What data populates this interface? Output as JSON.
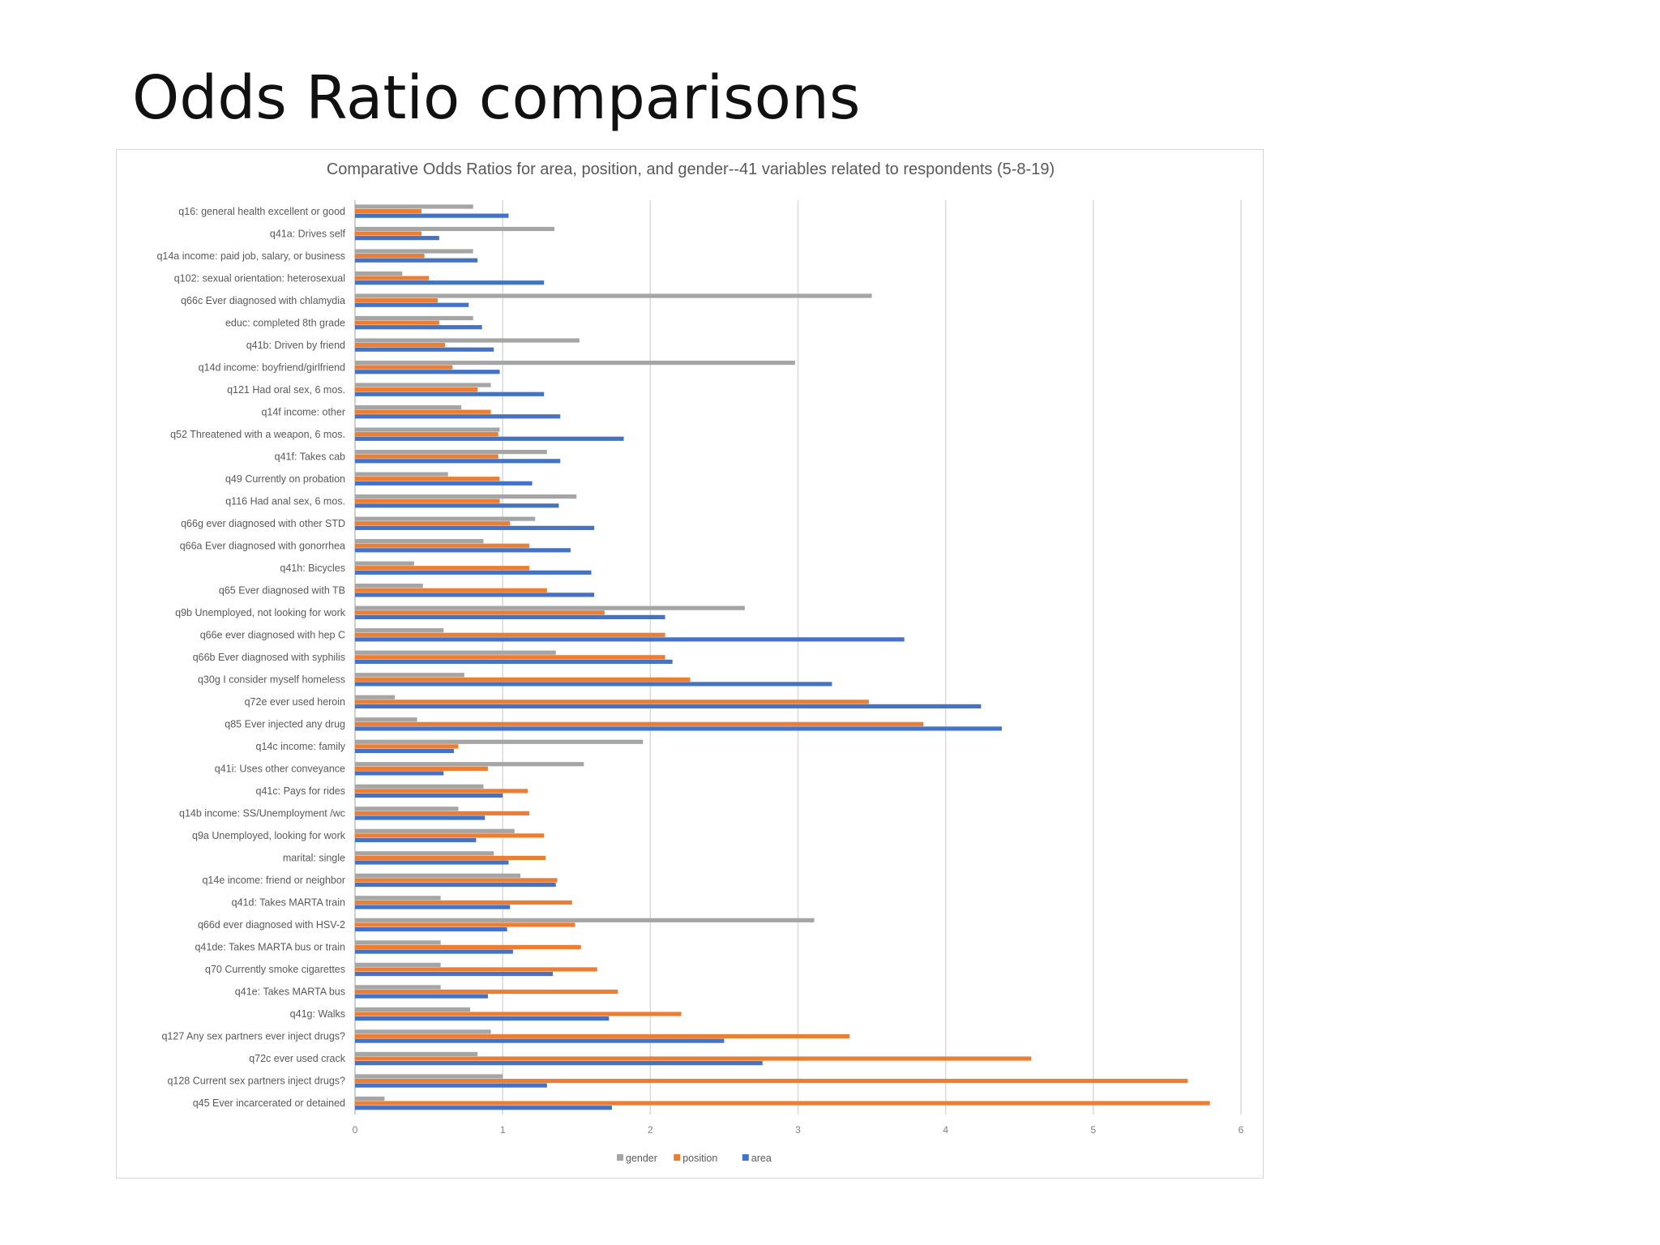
{
  "slide": {
    "title": "Odds Ratio comparisons"
  },
  "chart_data": {
    "type": "bar",
    "orientation": "horizontal",
    "title": "Comparative Odds Ratios for area, position, and gender--41 variables related to respondents (5-8-19)",
    "xlabel": "",
    "ylabel": "",
    "xlim": [
      0,
      6
    ],
    "x_ticks": [
      "0",
      "1",
      "2",
      "3",
      "4",
      "5",
      "6"
    ],
    "grid": "vertical",
    "legend": "bottom",
    "categories": [
      "q16: general health excellent or good",
      "q41a: Drives self",
      "q14a income: paid job, salary, or business",
      "q102: sexual orientation: heterosexual",
      "q66c Ever diagnosed with chlamydia",
      "educ: completed 8th grade",
      "q41b: Driven by friend",
      "q14d income: boyfriend/girlfriend",
      "q121 Had oral sex, 6 mos.",
      "q14f income: other",
      "q52 Threatened with a weapon, 6 mos.",
      "q41f: Takes cab",
      "q49 Currently on probation",
      "q116 Had anal sex, 6 mos.",
      "q66g ever diagnosed with other STD",
      "q66a Ever diagnosed with gonorrhea",
      "q41h: Bicycles",
      "q65 Ever diagnosed with TB",
      "q9b Unemployed, not looking for work",
      "q66e ever diagnosed with hep C",
      "q66b Ever diagnosed with syphilis",
      "q30g I consider myself homeless",
      "q72e ever used heroin",
      "q85 Ever injected any drug",
      "q14c income: family",
      "q41i: Uses other conveyance",
      "q41c: Pays for rides",
      "q14b income: SS/Unemployment /wc",
      "q9a Unemployed, looking for work",
      "marital: single",
      "q14e income: friend or neighbor",
      "q41d: Takes MARTA train",
      "q66d ever diagnosed with HSV-2",
      "q41de: Takes MARTA bus or train",
      "q70 Currently smoke cigarettes",
      "q41e: Takes MARTA bus",
      "q41g: Walks",
      "q127 Any sex partners ever inject drugs?",
      "q72c ever used crack",
      "q128 Current sex partners inject drugs?",
      "q45 Ever incarcerated or detained"
    ],
    "series": [
      {
        "name": "gender",
        "color": "#a5a5a5",
        "values": [
          0.8,
          1.35,
          0.8,
          0.32,
          3.5,
          0.8,
          1.52,
          2.98,
          0.92,
          0.72,
          0.98,
          1.3,
          0.63,
          1.5,
          1.22,
          0.87,
          0.4,
          0.46,
          2.64,
          0.6,
          1.36,
          0.74,
          0.27,
          0.42,
          1.95,
          1.55,
          0.87,
          0.7,
          1.08,
          0.94,
          1.12,
          0.58,
          3.11,
          0.58,
          0.58,
          0.58,
          0.78,
          0.92,
          0.83,
          1.0,
          0.2
        ]
      },
      {
        "name": "position",
        "color": "#ed7d31",
        "values": [
          0.45,
          0.45,
          0.47,
          0.5,
          0.56,
          0.57,
          0.61,
          0.66,
          0.83,
          0.92,
          0.97,
          0.97,
          0.98,
          0.98,
          1.05,
          1.18,
          1.18,
          1.3,
          1.69,
          2.1,
          2.1,
          2.27,
          3.48,
          3.85,
          0.7,
          0.9,
          1.17,
          1.18,
          1.28,
          1.29,
          1.37,
          1.47,
          1.49,
          1.53,
          1.64,
          1.78,
          2.21,
          3.35,
          4.58,
          5.64,
          5.79
        ]
      },
      {
        "name": "area",
        "color": "#4472c4",
        "values": [
          1.04,
          0.57,
          0.83,
          1.28,
          0.77,
          0.86,
          0.94,
          0.98,
          1.28,
          1.39,
          1.82,
          1.39,
          1.2,
          1.38,
          1.62,
          1.46,
          1.6,
          1.62,
          2.1,
          3.72,
          2.15,
          3.23,
          4.24,
          4.38,
          0.67,
          0.6,
          1.0,
          0.88,
          0.82,
          1.04,
          1.36,
          1.05,
          1.03,
          1.07,
          1.34,
          0.9,
          1.72,
          2.5,
          2.76,
          1.3,
          1.74
        ]
      }
    ]
  }
}
